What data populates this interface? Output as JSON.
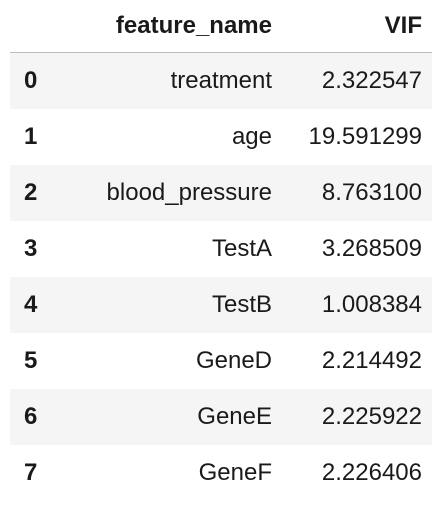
{
  "table": {
    "columns": {
      "index": "",
      "feature_name": "feature_name",
      "vif": "VIF"
    },
    "rows": [
      {
        "index": "0",
        "feature_name": "treatment",
        "vif": "2.322547"
      },
      {
        "index": "1",
        "feature_name": "age",
        "vif": "19.591299"
      },
      {
        "index": "2",
        "feature_name": "blood_pressure",
        "vif": "8.763100"
      },
      {
        "index": "3",
        "feature_name": "TestA",
        "vif": "3.268509"
      },
      {
        "index": "4",
        "feature_name": "TestB",
        "vif": "1.008384"
      },
      {
        "index": "5",
        "feature_name": "GeneD",
        "vif": "2.214492"
      },
      {
        "index": "6",
        "feature_name": "GeneE",
        "vif": "2.225922"
      },
      {
        "index": "7",
        "feature_name": "GeneF",
        "vif": "2.226406"
      }
    ]
  }
}
